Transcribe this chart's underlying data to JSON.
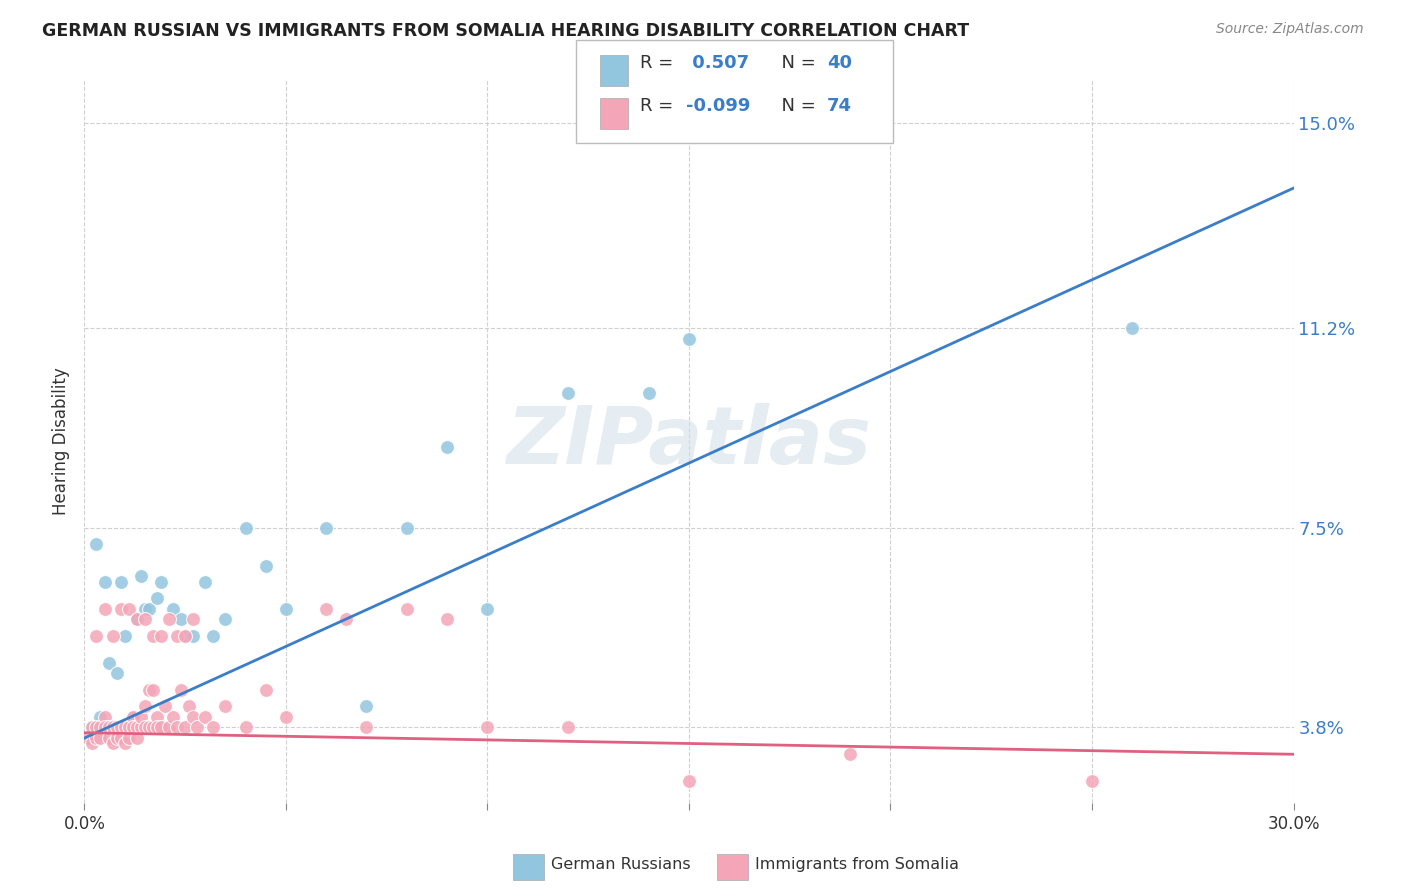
{
  "title": "GERMAN RUSSIAN VS IMMIGRANTS FROM SOMALIA HEARING DISABILITY CORRELATION CHART",
  "source": "Source: ZipAtlas.com",
  "ylabel": "Hearing Disability",
  "xlabel": "",
  "xmin": 0.0,
  "xmax": 0.3,
  "ymin": 0.024,
  "ymax": 0.158,
  "yticks": [
    0.038,
    0.075,
    0.112,
    0.15
  ],
  "ytick_labels": [
    "3.8%",
    "7.5%",
    "11.2%",
    "15.0%"
  ],
  "color_blue": "#92c5de",
  "color_pink": "#f4a6b8",
  "R_blue": 0.507,
  "N_blue": 40,
  "R_pink": -0.099,
  "N_pink": 74,
  "watermark": "ZIPatlas",
  "blue_line_x0": 0.0,
  "blue_line_y0": 0.036,
  "blue_line_x1": 0.3,
  "blue_line_y1": 0.138,
  "pink_line_x0": 0.0,
  "pink_line_y0": 0.037,
  "pink_line_x1": 0.3,
  "pink_line_y1": 0.033,
  "blue_scatter_x": [
    0.002,
    0.003,
    0.004,
    0.005,
    0.006,
    0.007,
    0.008,
    0.009,
    0.01,
    0.011,
    0.012,
    0.013,
    0.014,
    0.015,
    0.016,
    0.017,
    0.018,
    0.019,
    0.02,
    0.022,
    0.024,
    0.025,
    0.027,
    0.03,
    0.032,
    0.035,
    0.04,
    0.045,
    0.05,
    0.06,
    0.07,
    0.08,
    0.09,
    0.1,
    0.12,
    0.14,
    0.15,
    0.26,
    0.003,
    0.005
  ],
  "blue_scatter_y": [
    0.038,
    0.038,
    0.04,
    0.038,
    0.05,
    0.038,
    0.048,
    0.065,
    0.055,
    0.038,
    0.04,
    0.058,
    0.066,
    0.06,
    0.06,
    0.038,
    0.062,
    0.065,
    0.038,
    0.06,
    0.058,
    0.055,
    0.055,
    0.065,
    0.055,
    0.058,
    0.075,
    0.068,
    0.06,
    0.075,
    0.042,
    0.075,
    0.09,
    0.06,
    0.1,
    0.1,
    0.11,
    0.112,
    0.072,
    0.065
  ],
  "pink_scatter_x": [
    0.001,
    0.002,
    0.002,
    0.003,
    0.003,
    0.004,
    0.004,
    0.005,
    0.005,
    0.006,
    0.006,
    0.007,
    0.007,
    0.008,
    0.008,
    0.009,
    0.009,
    0.01,
    0.01,
    0.011,
    0.011,
    0.012,
    0.012,
    0.013,
    0.013,
    0.014,
    0.014,
    0.015,
    0.015,
    0.016,
    0.016,
    0.017,
    0.017,
    0.018,
    0.018,
    0.019,
    0.02,
    0.021,
    0.022,
    0.023,
    0.024,
    0.025,
    0.026,
    0.027,
    0.028,
    0.03,
    0.032,
    0.035,
    0.04,
    0.045,
    0.05,
    0.06,
    0.065,
    0.07,
    0.08,
    0.09,
    0.1,
    0.12,
    0.15,
    0.19,
    0.25,
    0.003,
    0.005,
    0.007,
    0.009,
    0.011,
    0.013,
    0.015,
    0.017,
    0.019,
    0.021,
    0.023,
    0.025,
    0.027
  ],
  "pink_scatter_y": [
    0.036,
    0.038,
    0.035,
    0.036,
    0.038,
    0.038,
    0.036,
    0.04,
    0.038,
    0.038,
    0.036,
    0.035,
    0.038,
    0.038,
    0.036,
    0.036,
    0.038,
    0.038,
    0.035,
    0.038,
    0.036,
    0.04,
    0.038,
    0.038,
    0.036,
    0.038,
    0.04,
    0.042,
    0.038,
    0.045,
    0.038,
    0.045,
    0.038,
    0.04,
    0.038,
    0.038,
    0.042,
    0.038,
    0.04,
    0.038,
    0.045,
    0.038,
    0.042,
    0.04,
    0.038,
    0.04,
    0.038,
    0.042,
    0.038,
    0.045,
    0.04,
    0.06,
    0.058,
    0.038,
    0.06,
    0.058,
    0.038,
    0.038,
    0.028,
    0.033,
    0.028,
    0.055,
    0.06,
    0.055,
    0.06,
    0.06,
    0.058,
    0.058,
    0.055,
    0.055,
    0.058,
    0.055,
    0.055,
    0.058
  ]
}
